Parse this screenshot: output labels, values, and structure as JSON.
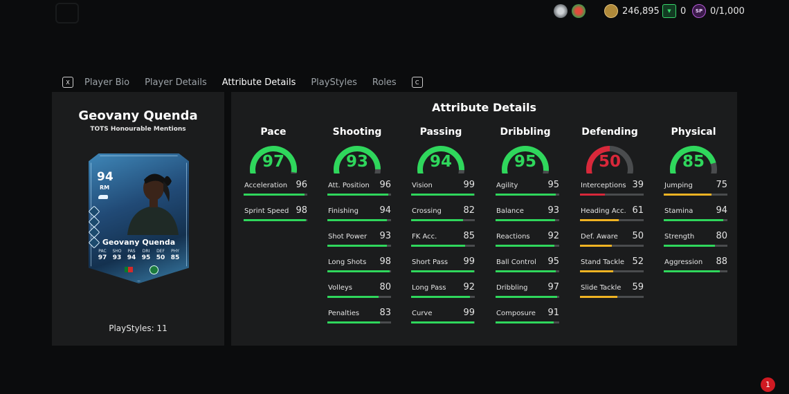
{
  "topbar": {
    "coins": "246,895",
    "points": "0",
    "sp": "0/1,000",
    "coin_icon": "fc-coin-icon",
    "points_icon": "fc-points-icon",
    "sp_icon": "sp-icon",
    "sp_label": "SP"
  },
  "tabs": {
    "left_key": "X",
    "right_key": "C",
    "items": [
      "Player Bio",
      "Player Details",
      "Attribute Details",
      "PlayStyles",
      "Roles"
    ],
    "active": "Attribute Details"
  },
  "player": {
    "name": "Geovany Quenda",
    "card_type": "TOTS Honourable Mentions",
    "playstyles_label": "PlayStyles: 11",
    "card": {
      "rating": "94",
      "position": "RM",
      "name": "Geovany Quenda",
      "stats": [
        {
          "label": "PAC",
          "value": "97"
        },
        {
          "label": "SHO",
          "value": "93"
        },
        {
          "label": "PAS",
          "value": "94"
        },
        {
          "label": "DRI",
          "value": "95"
        },
        {
          "label": "DEF",
          "value": "50"
        },
        {
          "label": "PHY",
          "value": "85"
        }
      ]
    }
  },
  "attributes": {
    "title": "Attribute Details",
    "colors": {
      "high": "#2fd75c",
      "mid": "#f0b323",
      "low": "#d8283a",
      "track": "#4a4c4e"
    },
    "categories": [
      {
        "name": "Pace",
        "value": 97,
        "attrs": [
          {
            "name": "Acceleration",
            "value": 96
          },
          {
            "name": "Sprint Speed",
            "value": 98
          }
        ]
      },
      {
        "name": "Shooting",
        "value": 93,
        "attrs": [
          {
            "name": "Att. Position",
            "value": 96
          },
          {
            "name": "Finishing",
            "value": 94
          },
          {
            "name": "Shot Power",
            "value": 93
          },
          {
            "name": "Long Shots",
            "value": 98
          },
          {
            "name": "Volleys",
            "value": 80
          },
          {
            "name": "Penalties",
            "value": 83
          }
        ]
      },
      {
        "name": "Passing",
        "value": 94,
        "attrs": [
          {
            "name": "Vision",
            "value": 99
          },
          {
            "name": "Crossing",
            "value": 82
          },
          {
            "name": "FK Acc.",
            "value": 85
          },
          {
            "name": "Short Pass",
            "value": 99
          },
          {
            "name": "Long Pass",
            "value": 92
          },
          {
            "name": "Curve",
            "value": 99
          }
        ]
      },
      {
        "name": "Dribbling",
        "value": 95,
        "attrs": [
          {
            "name": "Agility",
            "value": 95
          },
          {
            "name": "Balance",
            "value": 93
          },
          {
            "name": "Reactions",
            "value": 92
          },
          {
            "name": "Ball Control",
            "value": 95
          },
          {
            "name": "Dribbling",
            "value": 97
          },
          {
            "name": "Composure",
            "value": 91
          }
        ]
      },
      {
        "name": "Defending",
        "value": 50,
        "attrs": [
          {
            "name": "Interceptions",
            "value": 39
          },
          {
            "name": "Heading Acc.",
            "value": 61
          },
          {
            "name": "Def. Aware",
            "value": 50
          },
          {
            "name": "Stand Tackle",
            "value": 52
          },
          {
            "name": "Slide Tackle",
            "value": 59
          }
        ]
      },
      {
        "name": "Physical",
        "value": 85,
        "attrs": [
          {
            "name": "Jumping",
            "value": 75
          },
          {
            "name": "Stamina",
            "value": 94
          },
          {
            "name": "Strength",
            "value": 80
          },
          {
            "name": "Aggression",
            "value": 88
          }
        ]
      }
    ]
  },
  "notification_count": "1"
}
